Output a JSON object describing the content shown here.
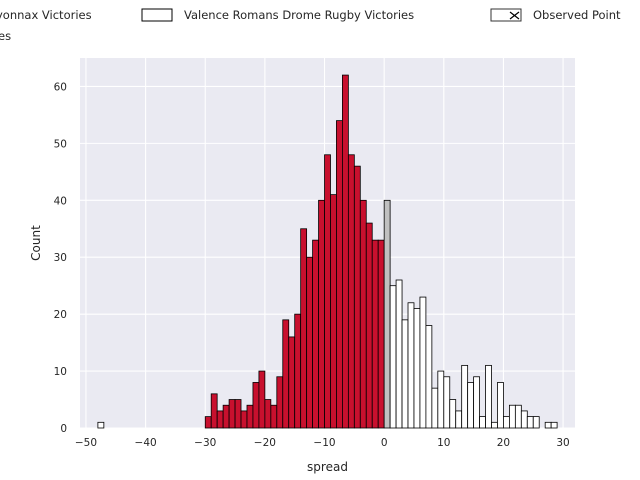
{
  "chart_data": {
    "type": "bar",
    "title": "",
    "xlabel": "spread",
    "ylabel": "Count",
    "xlim": [
      -51,
      32
    ],
    "ylim": [
      0,
      65
    ],
    "xticks": [
      -50,
      -40,
      -30,
      -20,
      -10,
      0,
      10,
      20,
      30
    ],
    "yticks": [
      0,
      10,
      20,
      30,
      40,
      50,
      60
    ],
    "xtick_labels": [
      "−50",
      "−40",
      "−30",
      "−20",
      "−10",
      "0",
      "10",
      "20",
      "30"
    ],
    "ytick_labels": [
      "0",
      "10",
      "20",
      "30",
      "40",
      "50",
      "60"
    ],
    "grid": true,
    "bin_width": 1,
    "legend": {
      "placement": "top",
      "entries": [
        {
          "label": "Oyonnax Victories",
          "visible_text": "yonnax Victories",
          "color": "#c8102e"
        },
        {
          "label": "Valence Romans Drome Rugby Victories",
          "visible_text": "Valence Romans Drome Rugby Victories",
          "color": "#ffffff"
        },
        {
          "label": "Observed Point",
          "visible_text": "Observed Point",
          "color": "#ffffff"
        },
        {
          "label": "Ties",
          "visible_text": "es",
          "color": "#c0c0c0"
        }
      ]
    },
    "series": [
      {
        "name": "Oyonnax Victories",
        "color": "#c8102e",
        "x": [
          -30,
          -29,
          -28,
          -27,
          -26,
          -25,
          -24,
          -23,
          -22,
          -21,
          -20,
          -19,
          -18,
          -17,
          -16,
          -15,
          -14,
          -13,
          -12,
          -11,
          -10,
          -9,
          -8,
          -7,
          -6,
          -5,
          -4,
          -3,
          -2,
          -1
        ],
        "values": [
          2,
          6,
          3,
          4,
          5,
          5,
          3,
          4,
          8,
          10,
          5,
          4,
          9,
          19,
          16,
          20,
          35,
          30,
          33,
          40,
          48,
          41,
          54,
          62,
          48,
          46,
          40,
          36,
          33,
          33
        ]
      },
      {
        "name": "Ties",
        "color": "#c0c0c0",
        "x": [
          0
        ],
        "values": [
          40
        ]
      },
      {
        "name": "Valence Romans Drome Rugby Victories",
        "color": "#ffffff",
        "x": [
          -48,
          1,
          2,
          3,
          4,
          5,
          6,
          7,
          8,
          9,
          10,
          11,
          12,
          13,
          14,
          15,
          16,
          17,
          18,
          19,
          20,
          21,
          22,
          23,
          24,
          25,
          27,
          28
        ],
        "values": [
          1,
          25,
          26,
          19,
          22,
          21,
          23,
          18,
          7,
          10,
          9,
          5,
          3,
          11,
          8,
          9,
          2,
          11,
          1,
          8,
          2,
          4,
          4,
          3,
          2,
          2,
          1,
          1
        ]
      }
    ]
  }
}
